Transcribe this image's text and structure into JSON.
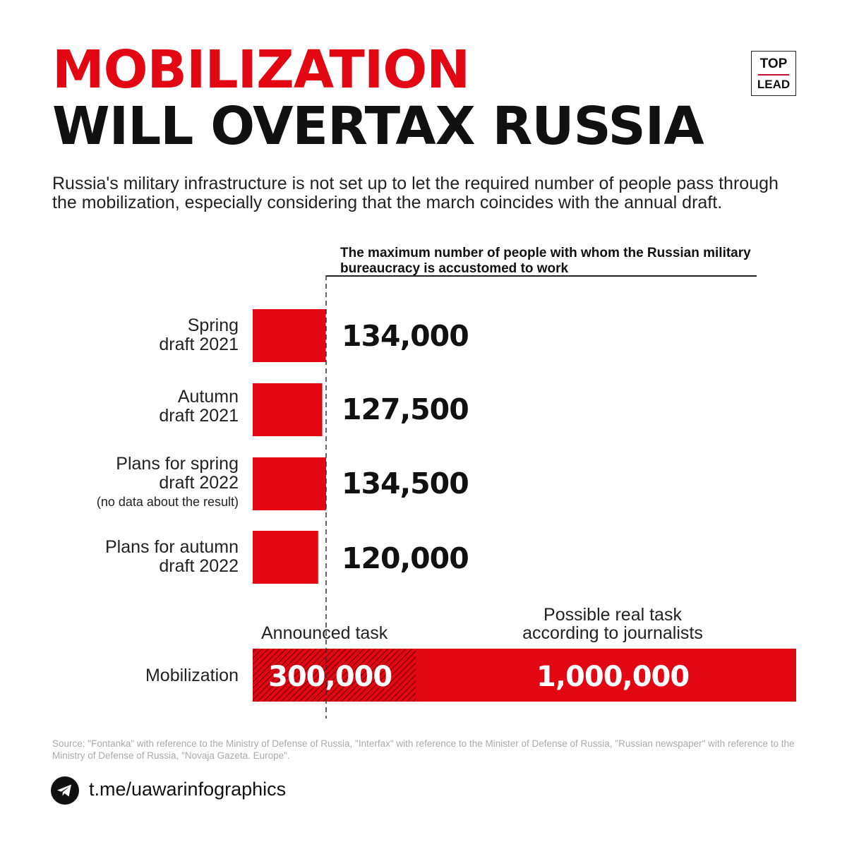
{
  "header": {
    "title_line1": "MOBILIZATION",
    "title_line2": "WILL OVERTAX RUSSIA",
    "logo_top": "TOP",
    "logo_bottom": "LEAD",
    "subtitle": "Russia's military infrastructure is not set up to let the required number of people pass through the mobilization, especially considering that the march coincides with the annual draft."
  },
  "colors": {
    "accent": "#e30613",
    "text": "#111111",
    "muted": "#aaaaaa"
  },
  "chart_data": {
    "type": "bar",
    "orientation": "horizontal",
    "reference_line": {
      "label": "The maximum number of people with whom the Russian military bureaucracy is accustomed to work",
      "value": 134500
    },
    "categories": [
      {
        "label_line1": "Spring",
        "label_line2": "draft 2021",
        "note": ""
      },
      {
        "label_line1": "Autumn",
        "label_line2": "draft 2021",
        "note": ""
      },
      {
        "label_line1": "Plans for spring",
        "label_line2": "draft 2022",
        "note": "(no data about the result)"
      },
      {
        "label_line1": "Plans for autumn",
        "label_line2": "draft 2022",
        "note": ""
      }
    ],
    "values": [
      134000,
      127500,
      134500,
      120000
    ],
    "value_labels": [
      "134,000",
      "127,500",
      "134,500",
      "120,000"
    ],
    "mobilization": {
      "label": "Mobilization",
      "announced": {
        "label": "Announced task",
        "value": 300000,
        "value_label": "300,000"
      },
      "possible": {
        "label_line1": "Possible real task",
        "label_line2": "according to journalists",
        "value": 1000000,
        "value_label": "1,000,000"
      }
    }
  },
  "footer": {
    "source": "Source: \"Fontanka\" with reference to the Ministry of Defense of Russia, \"Interfax\" with reference to the Minister of Defense of Russia, \"Russian newspaper\" with reference to the Ministry of Defense of Russia, \"Novaja Gazeta. Europe\".",
    "telegram_icon": "telegram-icon",
    "link": "t.me/uawarinfographics"
  }
}
